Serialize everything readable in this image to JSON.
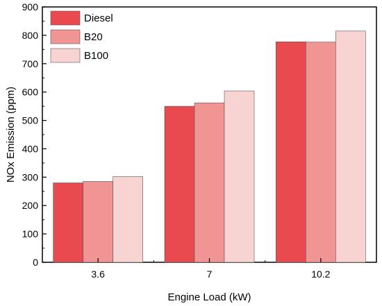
{
  "chart_data": {
    "type": "bar",
    "title": "",
    "xlabel": "Engine Load  (kW)",
    "ylabel": "NOx  Emission  (ppm)",
    "categories": [
      "3.6",
      "7",
      "10.2"
    ],
    "series": [
      {
        "name": "Diesel",
        "values": [
          280,
          550,
          777
        ],
        "color": "#e84a4f"
      },
      {
        "name": "B20",
        "values": [
          285,
          562,
          776
        ],
        "color": "#f09494"
      },
      {
        "name": "B100",
        "values": [
          302,
          604,
          815
        ],
        "color": "#f7d4d2"
      }
    ],
    "ylim": [
      0,
      900
    ],
    "yticks": [
      "0",
      "100",
      "200",
      "300",
      "400",
      "500",
      "600",
      "700",
      "800",
      "900"
    ],
    "grid": false,
    "legend_position": "top-left"
  }
}
